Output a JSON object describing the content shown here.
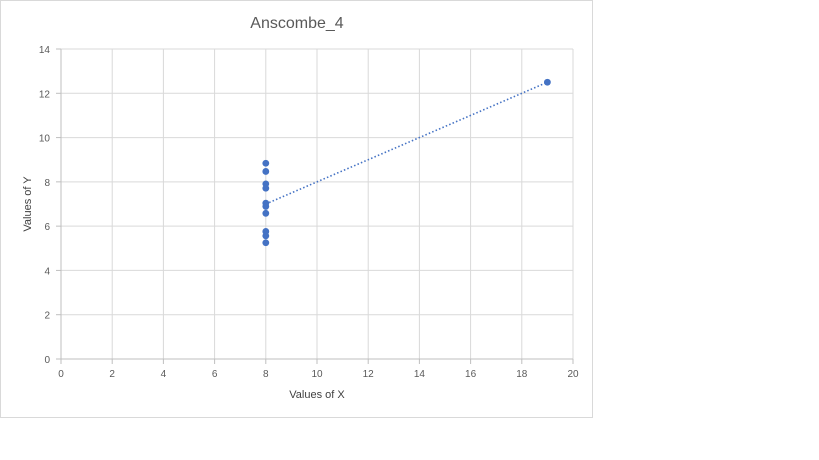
{
  "chart_data": {
    "type": "scatter",
    "title": "Anscombe_4",
    "xlabel": "Values of X",
    "ylabel": "Values of Y",
    "xlim": [
      0,
      20
    ],
    "ylim": [
      0,
      14
    ],
    "xticks": [
      0,
      2,
      4,
      6,
      8,
      10,
      12,
      14,
      16,
      18,
      20
    ],
    "yticks": [
      0,
      2,
      4,
      6,
      8,
      10,
      12,
      14
    ],
    "grid": true,
    "legend": "none",
    "series": [
      {
        "points": [
          {
            "x": 8,
            "y": 6.58
          },
          {
            "x": 8,
            "y": 5.76
          },
          {
            "x": 8,
            "y": 7.71
          },
          {
            "x": 8,
            "y": 8.84
          },
          {
            "x": 8,
            "y": 8.47
          },
          {
            "x": 8,
            "y": 7.04
          },
          {
            "x": 8,
            "y": 5.25
          },
          {
            "x": 19,
            "y": 12.5
          },
          {
            "x": 8,
            "y": 5.56
          },
          {
            "x": 8,
            "y": 7.91
          },
          {
            "x": 8,
            "y": 6.89
          }
        ],
        "color": "#4472c4"
      }
    ],
    "trendline": {
      "type": "linear",
      "style": "dotted",
      "color": "#4472c4",
      "from": {
        "x": 8,
        "y": 7.0
      },
      "to": {
        "x": 19,
        "y": 12.5
      }
    }
  }
}
